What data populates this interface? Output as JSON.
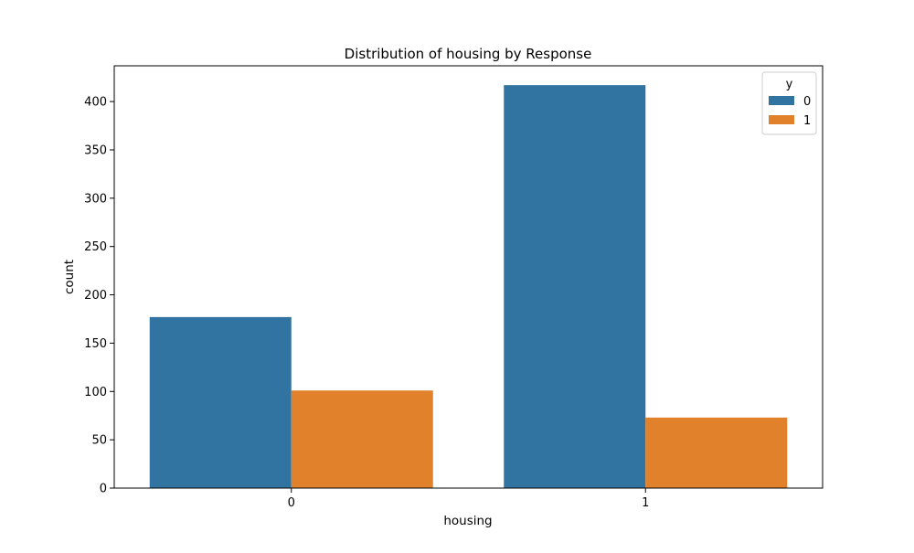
{
  "chart_data": {
    "type": "bar",
    "title": "Distribution of housing by Response",
    "xlabel": "housing",
    "ylabel": "count",
    "categories": [
      "0",
      "1"
    ],
    "series": [
      {
        "name": "0",
        "values": [
          177,
          417
        ],
        "color": "#3274a1"
      },
      {
        "name": "1",
        "values": [
          101,
          73
        ],
        "color": "#e1812c"
      }
    ],
    "ylim": [
      0,
      437
    ],
    "yticks": [
      0,
      50,
      100,
      150,
      200,
      250,
      300,
      350,
      400
    ],
    "grid": false,
    "legend": {
      "title": "y",
      "placement": "top-right"
    }
  }
}
